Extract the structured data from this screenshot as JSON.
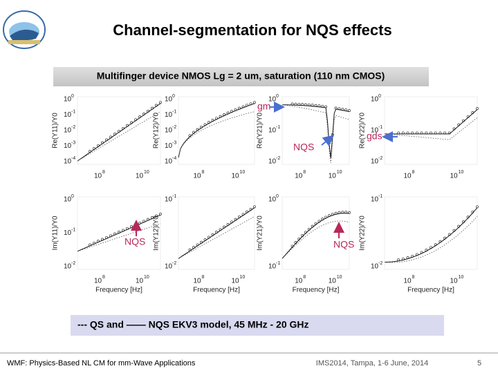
{
  "header": {
    "title": "Channel-segmentation for NQS effects"
  },
  "subtitle": "Multifinger device NMOS Lg = 2 um, saturation (110 nm CMOS)",
  "tick_base": "10",
  "xlabel": "Frequency [Hz]",
  "panels": [
    {
      "ylabel": "Re(Y11)/Y0",
      "yticks": [
        "0",
        "-1",
        "-2",
        "-3",
        "-4"
      ],
      "xticks": [
        "8",
        "10"
      ]
    },
    {
      "ylabel": "Re(Y12)/Y0",
      "yticks": [
        "0",
        "-1",
        "-2",
        "-3",
        "-4"
      ],
      "xticks": [
        "8",
        "10"
      ]
    },
    {
      "ylabel": "Re(Y21)/Y0",
      "yticks": [
        "0",
        "-1",
        "-2"
      ],
      "xticks": [
        "8",
        "10"
      ]
    },
    {
      "ylabel": "Re(Y22)/Y0",
      "yticks": [
        "0",
        "-1",
        "-2"
      ],
      "xticks": [
        "8",
        "10"
      ]
    },
    {
      "ylabel": "Im(Y11)/Y0",
      "yticks": [
        "0",
        "-1",
        "-2"
      ],
      "xticks": [
        "8",
        "10"
      ]
    },
    {
      "ylabel": "Im(Y12)/Y0",
      "yticks": [
        "-1",
        "-2"
      ],
      "xticks": [
        "8",
        "10"
      ]
    },
    {
      "ylabel": "Im(Y21)/Y0",
      "yticks": [
        "0",
        "-1"
      ],
      "xticks": [
        "8",
        "10"
      ]
    },
    {
      "ylabel": "Im(Y22)/Y0",
      "yticks": [
        "-1",
        "-2"
      ],
      "xticks": [
        "8",
        "10"
      ]
    }
  ],
  "annotations": {
    "gm": "gm",
    "gds": "gds",
    "nqs_top": "NQS",
    "nqs_left": "NQS",
    "nqs_right": "NQS"
  },
  "legend": "--- QS and —— NQS  EKV3 model, 45 MHz - 20 GHz",
  "footer": {
    "left": "WMF: Physics-Based NL CM for mm-Wave Applications",
    "center": "IMS2014, Tampa, 1-6 June, 2014",
    "page": "5"
  }
}
